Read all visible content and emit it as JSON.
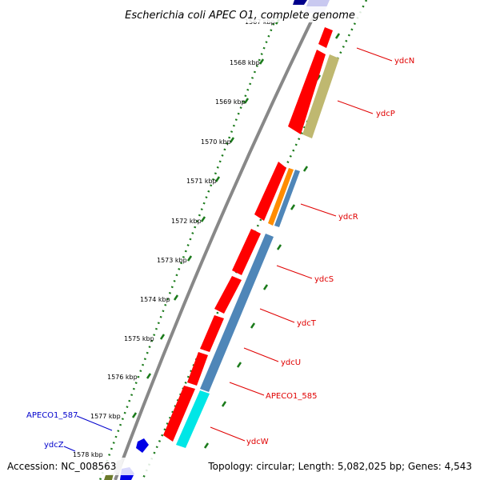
{
  "title": "Escherichia coli APEC O1, complete genome",
  "accession": "Accession: NC_008563",
  "topology": "Topology: circular; Length: 5,082,025 bp; Genes: 4,543",
  "colors": {
    "forward_gene": "#ff0000",
    "reverse_gene_steel": "#4f86b8",
    "olive": "#bfb870",
    "orange": "#ff8c00",
    "cyan": "#00e6e6",
    "blue": "#0000e6",
    "label_red": "#e00000",
    "label_blue": "#0000cc",
    "gc_dots": "#1a7a1a",
    "backbone": "#888888"
  },
  "ticks": [
    {
      "label": "1567 kbp"
    },
    {
      "label": "1568 kbp"
    },
    {
      "label": "1569 kbp"
    },
    {
      "label": "1570 kbp"
    },
    {
      "label": "1571 kbp"
    },
    {
      "label": "1572 kbp"
    },
    {
      "label": "1573 kbp"
    },
    {
      "label": "1574 kbp"
    },
    {
      "label": "1575 kbp"
    },
    {
      "label": "1576 kbp"
    },
    {
      "label": "1577 kbp"
    },
    {
      "label": "1578 kbp"
    }
  ],
  "gene_labels": [
    {
      "name": "ydcN",
      "color": "#e00000"
    },
    {
      "name": "ydcP",
      "color": "#e00000"
    },
    {
      "name": "ydcR",
      "color": "#e00000"
    },
    {
      "name": "ydcS",
      "color": "#e00000"
    },
    {
      "name": "ydcT",
      "color": "#e00000"
    },
    {
      "name": "ydcU",
      "color": "#e00000"
    },
    {
      "name": "APECO1_585",
      "color": "#e00000"
    },
    {
      "name": "ydcW",
      "color": "#e00000"
    },
    {
      "name": "APECO1_587",
      "color": "#0000cc"
    },
    {
      "name": "ydcZ",
      "color": "#0000cc"
    }
  ]
}
